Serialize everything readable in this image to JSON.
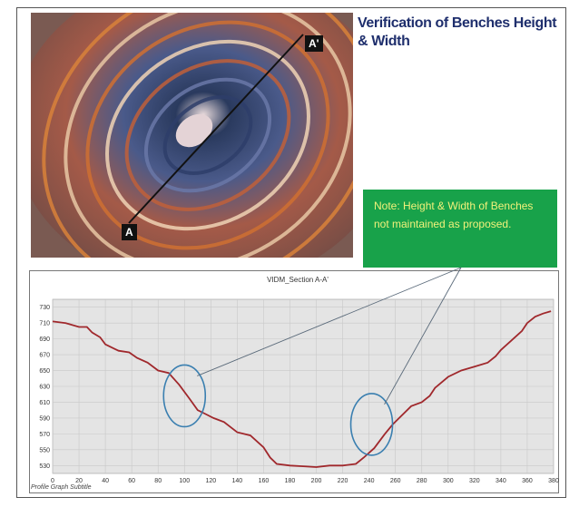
{
  "slide": {
    "title": "Verification of Benches Height & Width",
    "note": "Note: Height & Width of Benches not maintained as proposed.",
    "section_start_label": "A",
    "section_end_label": "A'"
  },
  "colors": {
    "title": "#1f2f6d",
    "note_bg": "#18a24a",
    "note_text": "#f1f17a",
    "profile_line": "#a0282c",
    "ellipse": "#3a7fb0",
    "plot_bg": "#e4e4e4"
  },
  "icons": [
    "satellite-image-of-open-pit-mine"
  ],
  "chart_data": {
    "type": "line",
    "title": "VIDM_Section A-A'",
    "footer": "Profile Graph Subtitle",
    "xlabel": "",
    "ylabel": "",
    "xlim": [
      0,
      380
    ],
    "ylim": [
      520,
      740
    ],
    "grid": true,
    "legend": "none",
    "x_ticks": [
      "0",
      "20",
      "40",
      "60",
      "80",
      "100",
      "120",
      "140",
      "160",
      "180",
      "200",
      "220",
      "240",
      "260",
      "280",
      "300",
      "320",
      "340",
      "360",
      "380"
    ],
    "y_ticks": [
      "730",
      "710",
      "690",
      "670",
      "650",
      "630",
      "610",
      "590",
      "570",
      "550",
      "530"
    ],
    "series": [
      {
        "x": [
          0,
          10,
          20,
          26,
          30,
          36,
          40,
          50,
          58,
          64,
          72,
          80,
          88,
          96,
          104,
          110,
          116,
          122,
          130,
          140,
          150,
          160,
          165,
          170,
          180,
          190,
          200,
          210,
          220,
          230,
          236,
          244,
          252,
          258,
          264,
          272,
          280,
          286,
          290,
          300,
          310,
          320,
          330,
          336,
          340,
          348,
          356,
          360,
          366,
          372,
          378
        ],
        "y": [
          712,
          710,
          705,
          705,
          698,
          692,
          683,
          675,
          673,
          666,
          660,
          650,
          647,
          632,
          614,
          600,
          595,
          590,
          585,
          572,
          568,
          553,
          540,
          532,
          530,
          529,
          528,
          530,
          530,
          532,
          540,
          552,
          570,
          582,
          592,
          605,
          610,
          618,
          628,
          642,
          650,
          655,
          660,
          668,
          676,
          688,
          700,
          710,
          718,
          722,
          725
        ]
      }
    ],
    "highlight_ellipses": [
      {
        "cx": 100,
        "cy": 618
      },
      {
        "cx": 242,
        "cy": 582
      }
    ]
  }
}
